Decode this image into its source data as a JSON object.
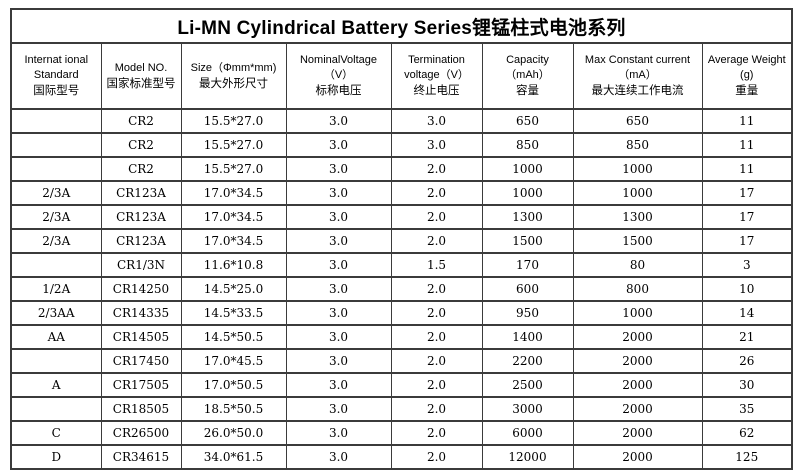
{
  "title": "Li-MN Cylindrical Battery Series锂锰柱式电池系列",
  "colors": {
    "border": "#3b3b3b",
    "text": "#000000",
    "background": "#ffffff"
  },
  "table": {
    "columns": [
      {
        "id": "international-standard",
        "lines": [
          "Internat ional",
          "Standard",
          "国际型号"
        ]
      },
      {
        "id": "model-no",
        "lines": [
          "Model NO.",
          "国家标准型号"
        ]
      },
      {
        "id": "size",
        "lines": [
          "Size（Φmm*mm)",
          "最大外形尺寸"
        ]
      },
      {
        "id": "nominal-voltage",
        "lines": [
          "NominalVoltage",
          "（V）",
          "标称电压"
        ]
      },
      {
        "id": "termination-voltage",
        "lines": [
          "Termination",
          "voltage（V）",
          "终止电压"
        ]
      },
      {
        "id": "capacity",
        "lines": [
          "Capacity",
          "（mAh）",
          "容量"
        ]
      },
      {
        "id": "max-constant-current",
        "lines": [
          "Max Constant current",
          "（mA）",
          "最大连续工作电流"
        ]
      },
      {
        "id": "average-weight",
        "lines": [
          "Average Weight",
          "(g)",
          "重量"
        ]
      }
    ],
    "rows": [
      [
        "",
        "CR2",
        "15.5*27.0",
        "3.0",
        "3.0",
        "650",
        "650",
        "11"
      ],
      [
        "",
        "CR2",
        "15.5*27.0",
        "3.0",
        "3.0",
        "850",
        "850",
        "11"
      ],
      [
        "",
        "CR2",
        "15.5*27.0",
        "3.0",
        "2.0",
        "1000",
        "1000",
        "11"
      ],
      [
        "2/3A",
        "CR123A",
        "17.0*34.5",
        "3.0",
        "2.0",
        "1000",
        "1000",
        "17"
      ],
      [
        "2/3A",
        "CR123A",
        "17.0*34.5",
        "3.0",
        "2.0",
        "1300",
        "1300",
        "17"
      ],
      [
        "2/3A",
        "CR123A",
        "17.0*34.5",
        "3.0",
        "2.0",
        "1500",
        "1500",
        "17"
      ],
      [
        "",
        "CR1/3N",
        "11.6*10.8",
        "3.0",
        "1.5",
        "170",
        "80",
        "3"
      ],
      [
        "1/2A",
        "CR14250",
        "14.5*25.0",
        "3.0",
        "2.0",
        "600",
        "800",
        "10"
      ],
      [
        "2/3AA",
        "CR14335",
        "14.5*33.5",
        "3.0",
        "2.0",
        "950",
        "1000",
        "14"
      ],
      [
        "AA",
        "CR14505",
        "14.5*50.5",
        "3.0",
        "2.0",
        "1400",
        "2000",
        "21"
      ],
      [
        "",
        "CR17450",
        "17.0*45.5",
        "3.0",
        "2.0",
        "2200",
        "2000",
        "26"
      ],
      [
        "A",
        "CR17505",
        "17.0*50.5",
        "3.0",
        "2.0",
        "2500",
        "2000",
        "30"
      ],
      [
        "",
        "CR18505",
        "18.5*50.5",
        "3.0",
        "2.0",
        "3000",
        "2000",
        "35"
      ],
      [
        "C",
        "CR26500",
        "26.0*50.0",
        "3.0",
        "2.0",
        "6000",
        "2000",
        "62"
      ],
      [
        "D",
        "CR34615",
        "34.0*61.5",
        "3.0",
        "2.0",
        "12000",
        "2000",
        "125"
      ]
    ]
  }
}
